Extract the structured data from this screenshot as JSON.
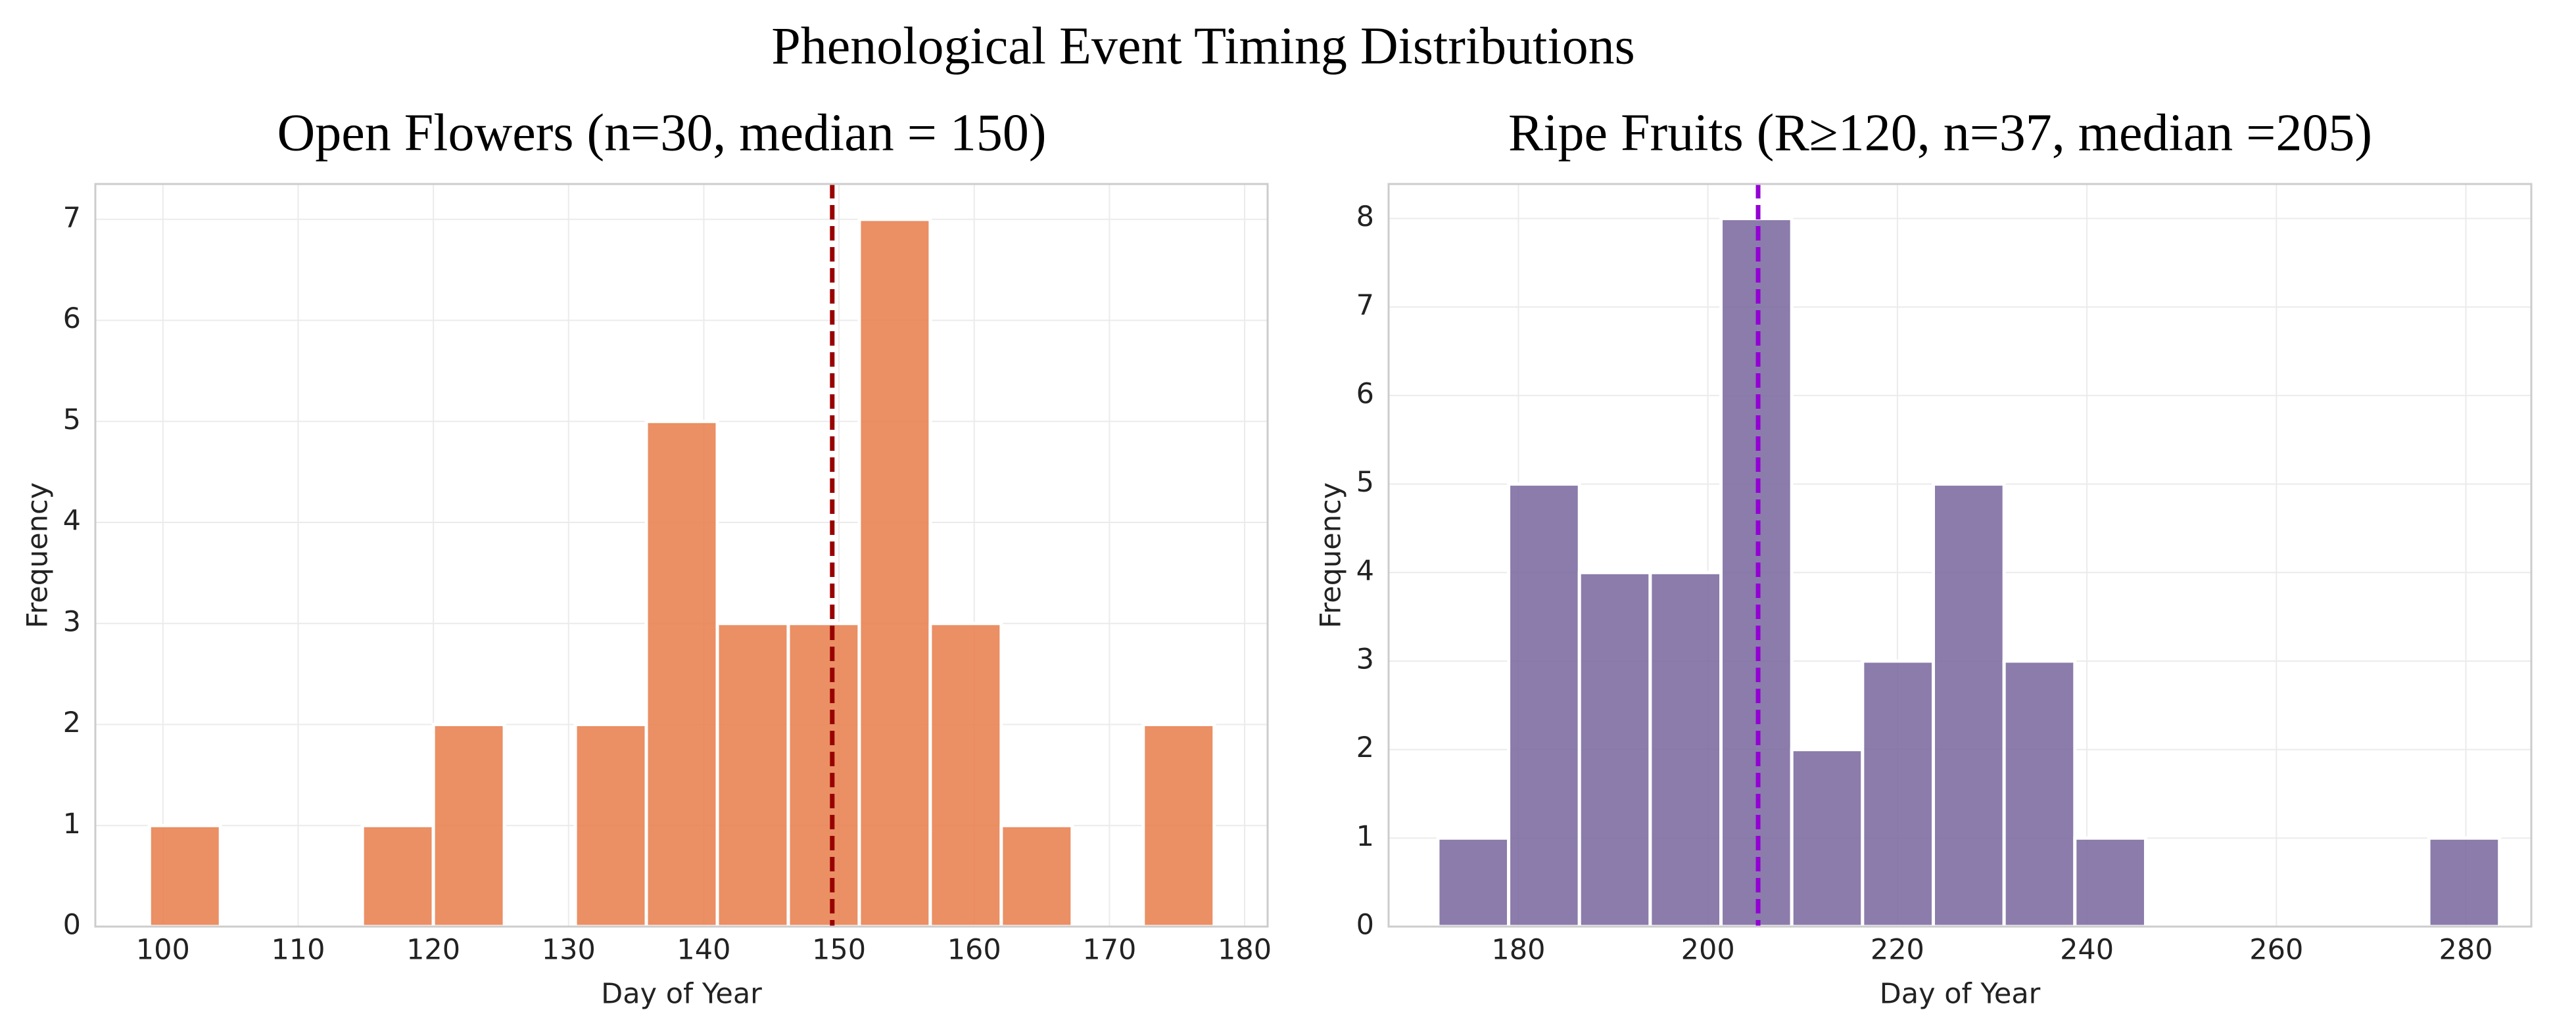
{
  "title": "Phenological Event Timing Distributions",
  "chart_data": [
    {
      "type": "histogram",
      "title": "Open Flowers (n=30, median = 150)",
      "x_label": "Day of Year",
      "y_label": "Frequency",
      "color": "#e8804f",
      "bins": [
        99,
        104.25,
        109.5,
        114.75,
        120,
        125.25,
        130.5,
        135.75,
        141,
        146.25,
        151.5,
        156.75,
        162,
        167.25,
        172.5,
        177.75
      ],
      "counts": [
        1,
        0,
        0,
        1,
        2,
        0,
        2,
        5,
        3,
        3,
        7,
        3,
        1,
        0,
        2
      ],
      "median_line": {
        "value": 149.5,
        "color": "#990000"
      },
      "xlim": [
        95,
        181.7
      ],
      "xticks": [
        100,
        110,
        120,
        130,
        140,
        150,
        160,
        170,
        180
      ],
      "ylim": [
        0,
        7.35
      ],
      "yticks": [
        0,
        1,
        2,
        3,
        4,
        5,
        6,
        7
      ],
      "grid": true
    },
    {
      "type": "histogram",
      "title": "Ripe Fruits (R≥120, n=37, median =205)",
      "x_label": "Day of Year",
      "y_label": "Frequency",
      "color": "#7b6a9f",
      "bins": [
        171.5,
        178.97,
        186.44,
        193.91,
        201.38,
        208.85,
        216.32,
        223.79,
        231.26,
        238.73,
        246.2,
        253.67,
        261.14,
        268.61,
        276.08,
        283.55
      ],
      "counts": [
        1,
        5,
        4,
        4,
        8,
        2,
        3,
        5,
        3,
        1,
        0,
        0,
        0,
        0,
        1
      ],
      "median_line": {
        "value": 205.3,
        "color": "#9400d3"
      },
      "xlim": [
        166.3,
        286.9
      ],
      "xticks": [
        180,
        200,
        220,
        240,
        260,
        280
      ],
      "ylim": [
        0,
        8.39
      ],
      "yticks": [
        0,
        1,
        2,
        3,
        4,
        5,
        6,
        7,
        8
      ],
      "grid": true
    }
  ]
}
